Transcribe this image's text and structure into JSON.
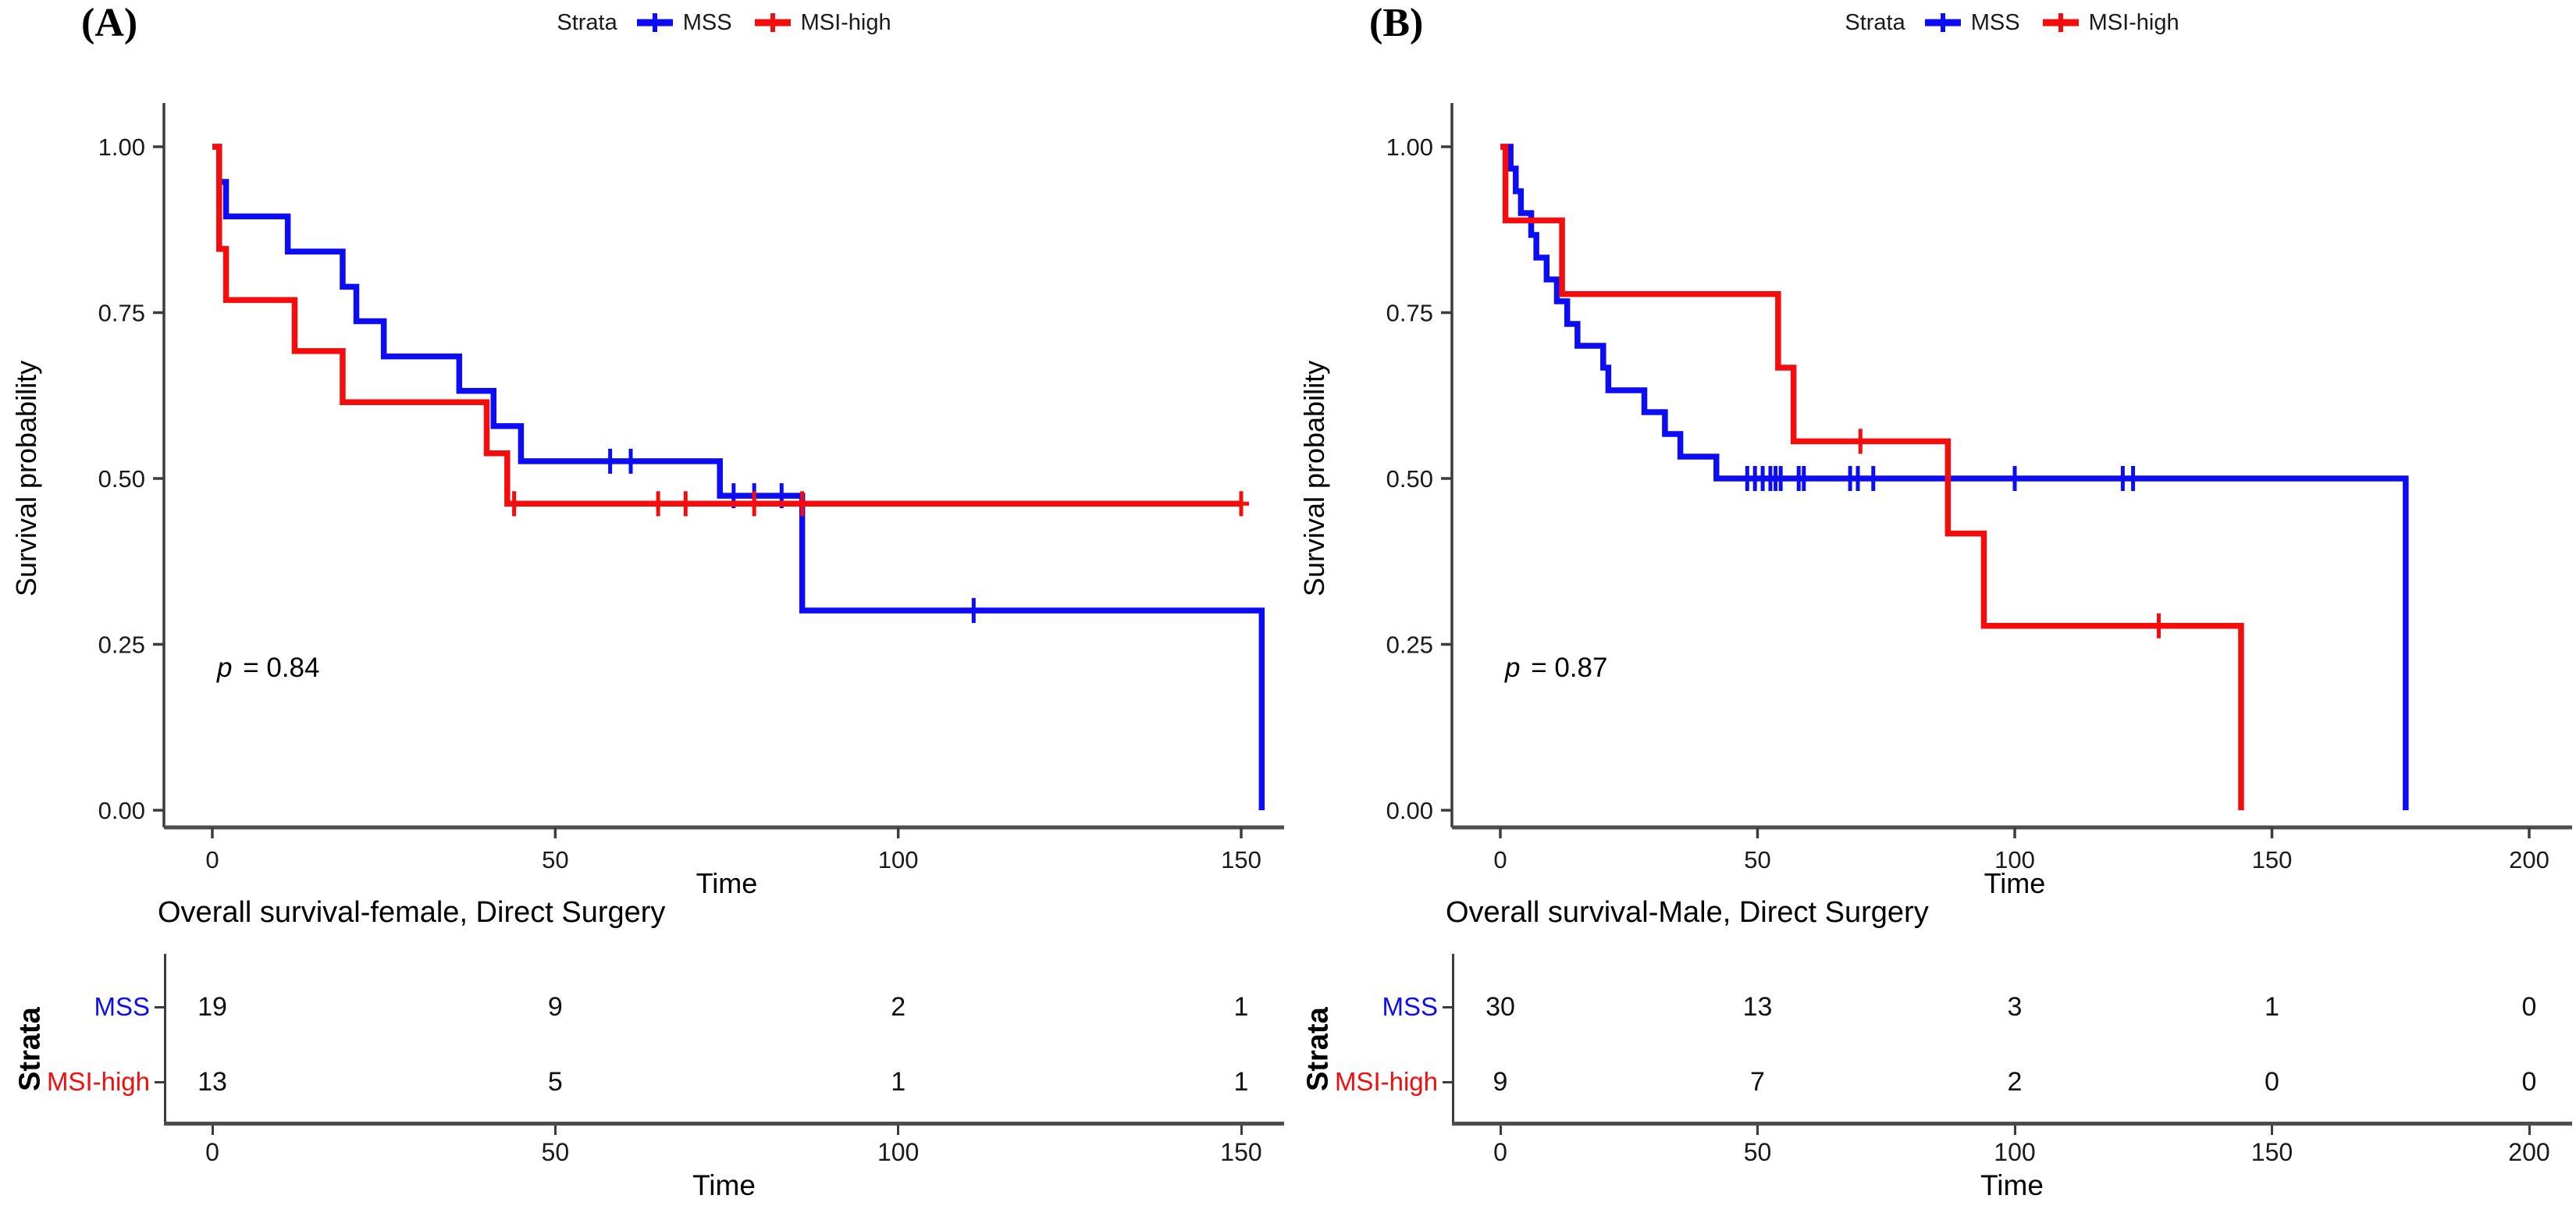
{
  "figure": {
    "background": "#ffffff",
    "colors": {
      "mss": "#0D0DF5",
      "msi_high": "#F50D0D",
      "axis": "#3c3c3c",
      "text": "#000000"
    }
  },
  "chart_data": [
    {
      "type": "line",
      "subtype": "kaplan-meier-step",
      "panel_label": "(A)",
      "xlabel": "Time",
      "ylabel": "Survival probability",
      "xlim": [
        0,
        157
      ],
      "ylim": [
        0,
        1
      ],
      "xticks": [
        0,
        50,
        100,
        150
      ],
      "yticks": [
        1.0,
        0.75,
        0.5,
        0.25,
        0.0
      ],
      "ytick_labels": [
        "1.00",
        "0.75",
        "0.50",
        "0.25",
        "0.00"
      ],
      "grid": false,
      "legend_position": "top",
      "legend": {
        "title": "Strata",
        "items": [
          {
            "label": "MSS",
            "color": "#0D0DF5"
          },
          {
            "label": "MSI-high",
            "color": "#F50D0D"
          }
        ]
      },
      "pvalue": {
        "symbol": "p",
        "rest": " = 0.84"
      },
      "series": [
        {
          "name": "MSS",
          "color": "#0D0DF5",
          "steps": [
            [
              0,
              1.0
            ],
            [
              1,
              0.947
            ],
            [
              2,
              0.895
            ],
            [
              11,
              0.842
            ],
            [
              19,
              0.789
            ],
            [
              21,
              0.737
            ],
            [
              25,
              0.684
            ],
            [
              36,
              0.632
            ],
            [
              41,
              0.579
            ],
            [
              45,
              0.526
            ],
            [
              74,
              0.474
            ],
            [
              86,
              0.301
            ],
            [
              153,
              0.0
            ]
          ],
          "censor_times": [
            58,
            61,
            76,
            79,
            83,
            111
          ]
        },
        {
          "name": "MSI-high",
          "color": "#F50D0D",
          "steps": [
            [
              0,
              1.0
            ],
            [
              1,
              0.846
            ],
            [
              2,
              0.769
            ],
            [
              12,
              0.692
            ],
            [
              19,
              0.615
            ],
            [
              40,
              0.538
            ],
            [
              43,
              0.462
            ],
            [
              150,
              0.462
            ]
          ],
          "censor_times": [
            44,
            65,
            69,
            79,
            86,
            150
          ]
        }
      ],
      "risk_table": {
        "title": "Overall survival-female, Direct Surgery",
        "axis_title": "Strata",
        "xlabel": "Time",
        "times": [
          0,
          50,
          100,
          150
        ],
        "rows": [
          {
            "label": "MSS",
            "color": "#0D0DF5",
            "counts": [
              "19",
              "9",
              "2",
              "1"
            ]
          },
          {
            "label": "MSI-high",
            "color": "#F50D0D",
            "counts": [
              "13",
              "5",
              "1",
              "1"
            ]
          }
        ]
      }
    },
    {
      "type": "line",
      "subtype": "kaplan-meier-step",
      "panel_label": "(B)",
      "xlabel": "Time",
      "ylabel": "Survival probability",
      "xlim": [
        0,
        210
      ],
      "ylim": [
        0,
        1
      ],
      "xticks": [
        0,
        50,
        100,
        150,
        200
      ],
      "yticks": [
        1.0,
        0.75,
        0.5,
        0.25,
        0.0
      ],
      "ytick_labels": [
        "1.00",
        "0.75",
        "0.50",
        "0.25",
        "0.00"
      ],
      "grid": false,
      "legend_position": "top",
      "legend": {
        "title": "Strata",
        "items": [
          {
            "label": "MSS",
            "color": "#0D0DF5"
          },
          {
            "label": "MSI-high",
            "color": "#F50D0D"
          }
        ]
      },
      "pvalue": {
        "symbol": "p",
        "rest": " = 0.87"
      },
      "series": [
        {
          "name": "MSS",
          "color": "#0D0DF5",
          "steps": [
            [
              0,
              1.0
            ],
            [
              2,
              0.967
            ],
            [
              3,
              0.933
            ],
            [
              4,
              0.9
            ],
            [
              6,
              0.867
            ],
            [
              7,
              0.833
            ],
            [
              9,
              0.8
            ],
            [
              11,
              0.767
            ],
            [
              13,
              0.733
            ],
            [
              15,
              0.7
            ],
            [
              20,
              0.667
            ],
            [
              21,
              0.633
            ],
            [
              28,
              0.6
            ],
            [
              32,
              0.567
            ],
            [
              35,
              0.533
            ],
            [
              42,
              0.5
            ],
            [
              176,
              0.0
            ]
          ],
          "censor_times": [
            48,
            49.5,
            51,
            52.5,
            53.5,
            54.5,
            58,
            59,
            68,
            69.5,
            72.5,
            100,
            121,
            123
          ]
        },
        {
          "name": "MSI-high",
          "color": "#F50D0D",
          "steps": [
            [
              0,
              1.0
            ],
            [
              1,
              0.889
            ],
            [
              12,
              0.778
            ],
            [
              54,
              0.667
            ],
            [
              57,
              0.556
            ],
            [
              87,
              0.417
            ],
            [
              94,
              0.278
            ],
            [
              144,
              0.0
            ]
          ],
          "censor_times": [
            70,
            128
          ]
        }
      ],
      "risk_table": {
        "title": "Overall survival-Male, Direct Surgery",
        "axis_title": "Strata",
        "xlabel": "Time",
        "times": [
          0,
          50,
          100,
          150,
          200
        ],
        "rows": [
          {
            "label": "MSS",
            "color": "#0D0DF5",
            "counts": [
              "30",
              "13",
              "3",
              "1",
              "0"
            ]
          },
          {
            "label": "MSI-high",
            "color": "#F50D0D",
            "counts": [
              "9",
              "7",
              "2",
              "0",
              "0"
            ]
          }
        ]
      }
    }
  ]
}
